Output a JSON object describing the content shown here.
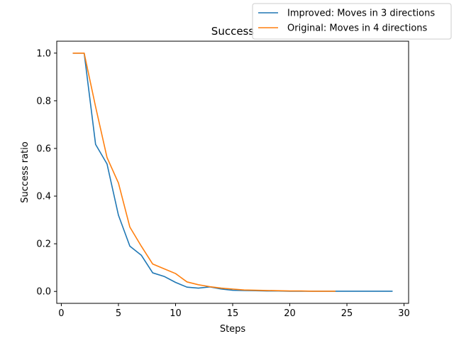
{
  "chart_data": {
    "type": "line",
    "title": "Success",
    "xlabel": "Steps",
    "ylabel": "Success ratio",
    "xlim": [
      -0.4,
      30.4
    ],
    "ylim": [
      -0.05,
      1.05
    ],
    "xticks": [
      0,
      5,
      10,
      15,
      20,
      25,
      30
    ],
    "yticks": [
      0.0,
      0.2,
      0.4,
      0.6,
      0.8,
      1.0
    ],
    "xtick_labels": [
      "0",
      "5",
      "10",
      "15",
      "20",
      "25",
      "30"
    ],
    "ytick_labels": [
      "0.0",
      "0.2",
      "0.4",
      "0.6",
      "0.8",
      "1.0"
    ],
    "grid": false,
    "legend_position": "top-right (outside)",
    "series": [
      {
        "name": "Improved: Moves in 3 directions",
        "color": "#1f77b4",
        "x": [
          1,
          2,
          3,
          4,
          5,
          6,
          7,
          8,
          9,
          10,
          11,
          12,
          13,
          14,
          15,
          16,
          17,
          18,
          19,
          20,
          21,
          22,
          23,
          24,
          25,
          26,
          27,
          28,
          29
        ],
        "y": [
          1.0,
          1.0,
          0.617,
          0.535,
          0.32,
          0.19,
          0.152,
          0.078,
          0.063,
          0.038,
          0.018,
          0.014,
          0.019,
          0.01,
          0.005,
          0.004,
          0.003,
          0.002,
          0.002,
          0.001,
          0.001,
          0.001,
          0.001,
          0.001,
          0.001,
          0.001,
          0.001,
          0.001,
          0.001
        ]
      },
      {
        "name": "Original: Moves in 4 directions",
        "color": "#ff7f0e",
        "x": [
          1,
          2,
          3,
          4,
          5,
          6,
          7,
          8,
          9,
          10,
          11,
          12,
          13,
          14,
          15,
          16,
          17,
          18,
          19,
          20,
          21,
          22,
          23,
          24
        ],
        "y": [
          1.0,
          1.0,
          0.775,
          0.562,
          0.455,
          0.27,
          0.19,
          0.115,
          0.095,
          0.075,
          0.04,
          0.028,
          0.02,
          0.014,
          0.01,
          0.006,
          0.005,
          0.004,
          0.003,
          0.002,
          0.002,
          0.001,
          0.001,
          0.001
        ]
      }
    ]
  }
}
